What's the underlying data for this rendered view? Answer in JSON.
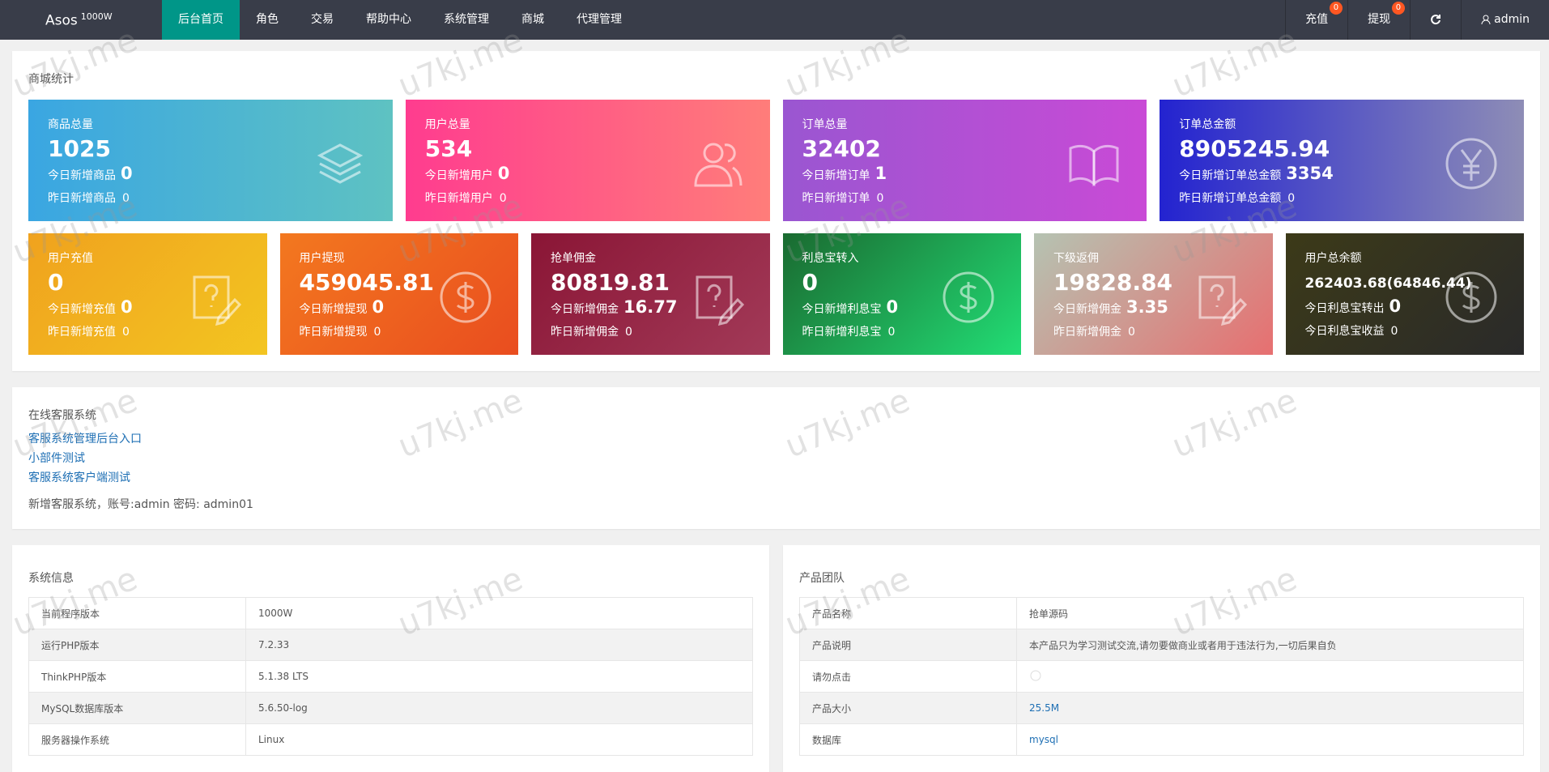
{
  "nav": {
    "brand": "Asos",
    "brand_sup": "1000W",
    "menu": [
      "后台首页",
      "角色",
      "交易",
      "帮助中心",
      "系统管理",
      "商城",
      "代理管理"
    ],
    "recharge": {
      "label": "充值",
      "badge": "0"
    },
    "withdraw": {
      "label": "提现",
      "badge": "0"
    },
    "user": "admin"
  },
  "watermark": "u7kj.me",
  "stats": {
    "title": "商城统计",
    "row1": [
      {
        "label": "商品总量",
        "value": "1025",
        "today_label": "今日新增商品",
        "today_value": "0",
        "yesterday_label": "昨日新增商品",
        "yesterday_value": "0"
      },
      {
        "label": "用户总量",
        "value": "534",
        "today_label": "今日新增用户",
        "today_value": "0",
        "yesterday_label": "昨日新增用户",
        "yesterday_value": "0"
      },
      {
        "label": "订单总量",
        "value": "32402",
        "today_label": "今日新增订单",
        "today_value": "1",
        "yesterday_label": "昨日新增订单",
        "yesterday_value": "0"
      },
      {
        "label": "订单总金额",
        "value": "8905245.94",
        "today_label": "今日新增订单总金额",
        "today_value": "3354",
        "yesterday_label": "昨日新增订单总金额",
        "yesterday_value": "0"
      }
    ],
    "row2": [
      {
        "label": "用户充值",
        "value": "0",
        "today_label": "今日新增充值",
        "today_value": "0",
        "yesterday_label": "昨日新增充值",
        "yesterday_value": "0"
      },
      {
        "label": "用户提现",
        "value": "459045.81",
        "today_label": "今日新增提现",
        "today_value": "0",
        "yesterday_label": "昨日新增提现",
        "yesterday_value": "0"
      },
      {
        "label": "抢单佣金",
        "value": "80819.81",
        "today_label": "今日新增佣金",
        "today_value": "16.77",
        "yesterday_label": "昨日新增佣金",
        "yesterday_value": "0"
      },
      {
        "label": "利息宝转入",
        "value": "0",
        "today_label": "今日新增利息宝",
        "today_value": "0",
        "yesterday_label": "昨日新增利息宝",
        "yesterday_value": "0"
      },
      {
        "label": "下级返佣",
        "value": "19828.84",
        "today_label": "今日新增佣金",
        "today_value": "3.35",
        "yesterday_label": "昨日新增佣金",
        "yesterday_value": "0"
      },
      {
        "label": "用户总余额",
        "value": "262403.68(64846.44)",
        "today_label": "今日利息宝转出",
        "today_value": "0",
        "yesterday_label": "今日利息宝收益",
        "yesterday_value": "0"
      }
    ]
  },
  "service": {
    "title": "在线客服系统",
    "links": [
      "客服系统管理后台入口",
      "小部件测试",
      "客服系统客户端测试"
    ],
    "note": "新增客服系统，账号:admin 密码: admin01"
  },
  "system": {
    "title": "系统信息",
    "rows": [
      [
        "当前程序版本",
        "1000W"
      ],
      [
        "运行PHP版本",
        "7.2.33"
      ],
      [
        "ThinkPHP版本",
        "5.1.38 LTS"
      ],
      [
        "MySQL数据库版本",
        "5.6.50-log"
      ],
      [
        "服务器操作系统",
        "Linux"
      ]
    ]
  },
  "product": {
    "title": "产品团队",
    "rows": [
      [
        "产品名称",
        "抢单源码"
      ],
      [
        "产品说明",
        "本产品只为学习测试交流,请勿要做商业或者用于违法行为,一切后果自负"
      ],
      [
        "请勿点击"
      ],
      [
        "产品大小",
        "25.5M"
      ],
      [
        "数据库",
        "mysql"
      ]
    ]
  }
}
